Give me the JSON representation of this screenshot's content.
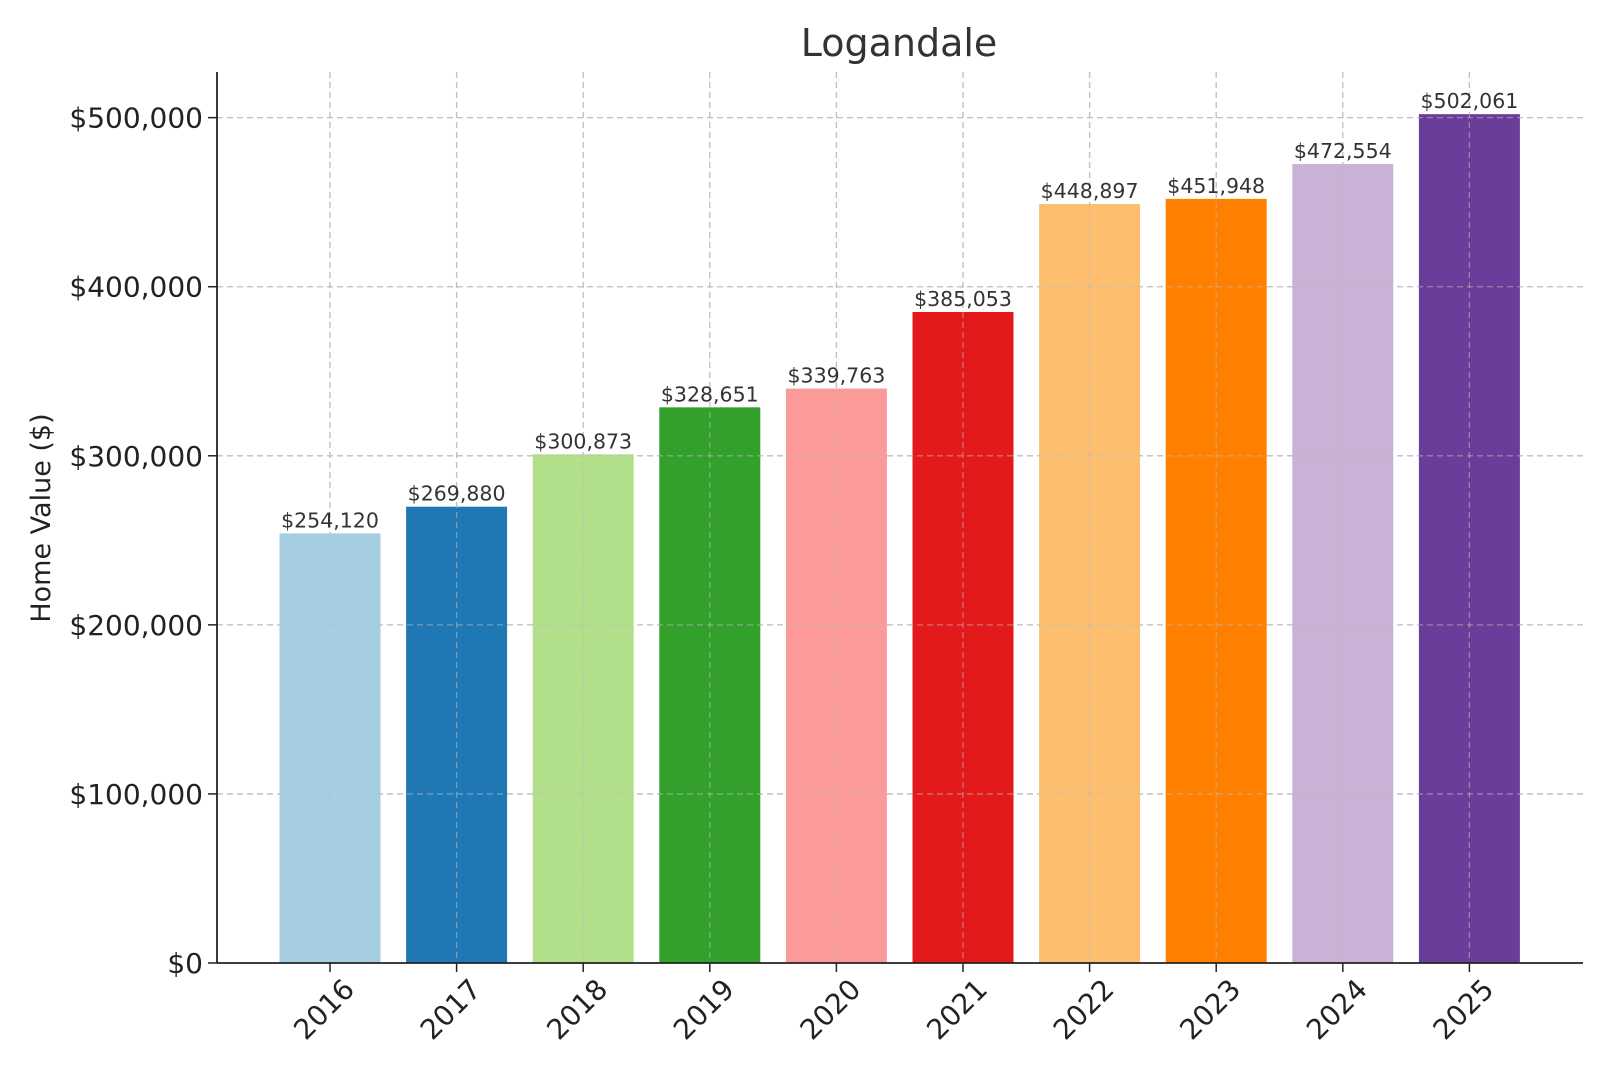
{
  "chart_data": {
    "type": "bar",
    "title": "Logandale",
    "xlabel": "",
    "ylabel": "Home Value ($)",
    "ylim": [
      0,
      527000
    ],
    "grid": true,
    "categories": [
      "2016",
      "2017",
      "2018",
      "2019",
      "2020",
      "2021",
      "2022",
      "2023",
      "2024",
      "2025"
    ],
    "values": [
      254120,
      269880,
      300873,
      328651,
      339763,
      385053,
      448897,
      451948,
      472554,
      502061
    ],
    "data_labels": [
      "$254,120",
      "$269,880",
      "$300,873",
      "$328,651",
      "$339,763",
      "$385,053",
      "$448,897",
      "$451,948",
      "$472,554",
      "$502,061"
    ],
    "colors": [
      "#a6cee3",
      "#1f78b4",
      "#b2df8a",
      "#33a02c",
      "#fb9a99",
      "#e31a1c",
      "#fdbf6f",
      "#ff7f00",
      "#cab2d6",
      "#6a3d9a"
    ],
    "yticks": [
      0,
      100000,
      200000,
      300000,
      400000,
      500000
    ],
    "ytick_labels": [
      "$0",
      "$100,000",
      "$200,000",
      "$300,000",
      "$400,000",
      "$500,000"
    ]
  }
}
